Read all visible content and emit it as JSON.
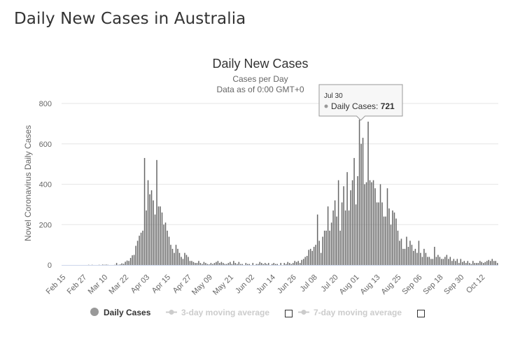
{
  "page": {
    "title": "Daily New Cases in Australia"
  },
  "chart_data": {
    "type": "bar",
    "title": "Daily New Cases",
    "subtitle_lines": [
      "Cases per Day",
      "Data as of 0:00 GMT+0"
    ],
    "ylabel": "Novel Coronavirus Daily Cases",
    "xlabel": "",
    "ylim": [
      0,
      800
    ],
    "yticks": [
      0,
      200,
      400,
      600,
      800
    ],
    "grid": true,
    "x_start": "Feb 15",
    "x_end": "Oct 13",
    "xticks": [
      "Feb 15",
      "Feb 27",
      "Mar 10",
      "Mar 22",
      "Apr 03",
      "Apr 15",
      "Apr 27",
      "May 09",
      "May 21",
      "Jun 02",
      "Jun 14",
      "Jun 26",
      "Jul 08",
      "Jul 20",
      "Aug 01",
      "Aug 13",
      "Aug 25",
      "Sep 06",
      "Sep 18",
      "Sep 30",
      "Oct 12"
    ],
    "bar_color": "#666666",
    "series": [
      {
        "name": "Daily Cases",
        "values": [
          0,
          0,
          0,
          0,
          0,
          0,
          0,
          0,
          0,
          0,
          0,
          0,
          0,
          0,
          0,
          1,
          0,
          1,
          0,
          0,
          0,
          1,
          0,
          2,
          1,
          2,
          1,
          0,
          0,
          0,
          1,
          10,
          1,
          3,
          8,
          6,
          16,
          22,
          20,
          35,
          48,
          50,
          95,
          120,
          145,
          160,
          170,
          530,
          270,
          420,
          350,
          370,
          320,
          250,
          520,
          290,
          290,
          260,
          200,
          210,
          170,
          140,
          100,
          80,
          60,
          100,
          80,
          60,
          40,
          30,
          60,
          50,
          40,
          20,
          20,
          15,
          10,
          10,
          20,
          10,
          5,
          15,
          10,
          5,
          3,
          10,
          5,
          10,
          15,
          20,
          10,
          15,
          10,
          5,
          5,
          10,
          15,
          5,
          20,
          10,
          5,
          15,
          5,
          5,
          0,
          10,
          5,
          5,
          0,
          10,
          0,
          5,
          5,
          15,
          10,
          5,
          10,
          5,
          10,
          0,
          5,
          10,
          5,
          5,
          0,
          10,
          0,
          10,
          5,
          15,
          10,
          5,
          10,
          20,
          15,
          20,
          10,
          25,
          30,
          40,
          45,
          75,
          80,
          70,
          90,
          100,
          250,
          120,
          60,
          140,
          170,
          170,
          290,
          170,
          210,
          270,
          320,
          240,
          420,
          170,
          310,
          390,
          270,
          460,
          270,
          370,
          420,
          530,
          300,
          440,
          720,
          600,
          630,
          400,
          410,
          710,
          420,
          410,
          420,
          380,
          310,
          310,
          400,
          310,
          240,
          240,
          380,
          280,
          200,
          270,
          260,
          230,
          170,
          120,
          130,
          80,
          80,
          140,
          90,
          120,
          100,
          70,
          80,
          60,
          120,
          60,
          40,
          80,
          60,
          40,
          40,
          30,
          30,
          90,
          40,
          50,
          40,
          30,
          30,
          40,
          50,
          30,
          40,
          20,
          30,
          20,
          30,
          10,
          30,
          15,
          20,
          10,
          20,
          10,
          5,
          20,
          10,
          10,
          10,
          20,
          15,
          10,
          15,
          20,
          25,
          20,
          30,
          20,
          20,
          10
        ]
      }
    ],
    "legend": {
      "placement": "bottom",
      "items": [
        {
          "label": "Daily Cases",
          "active": true
        },
        {
          "label": "3-day moving average",
          "active": false
        },
        {
          "label": "7-day moving average",
          "active": false
        }
      ]
    },
    "tooltip": {
      "date": "Jul 30",
      "series_label": "Daily Cases",
      "value_text": "721",
      "value": 721
    }
  }
}
